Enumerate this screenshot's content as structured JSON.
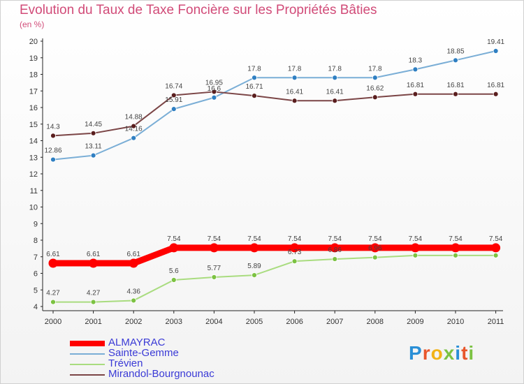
{
  "header": {
    "title": "Evolution du Taux de Taxe Foncière sur les Propriétés Bâties",
    "unit": "(en %)"
  },
  "logo": {
    "text": "Proxiti",
    "colors": [
      "#2a8fd6",
      "#e8562b",
      "#f2b317",
      "#7cc242",
      "#2a8fd6",
      "#e8562b",
      "#7cc242"
    ]
  },
  "chart_data": {
    "type": "line",
    "title": "Evolution du Taux de Taxe Foncière sur les Propriétés Bâties",
    "ylabel": "(en %)",
    "xlabel": "",
    "x": [
      "2000",
      "2001",
      "2002",
      "2003",
      "2004",
      "2005",
      "2006",
      "2007",
      "2008",
      "2009",
      "2010",
      "2011"
    ],
    "ylim": [
      4,
      20
    ],
    "yticks": [
      4,
      5,
      6,
      7,
      8,
      9,
      10,
      11,
      12,
      13,
      14,
      15,
      16,
      17,
      18,
      19,
      20
    ],
    "grid": false,
    "legend_position": "bottom-left",
    "series": [
      {
        "name": "ALMAYRAC",
        "color": "#ff0000",
        "marker_color": "#ff0000",
        "emphasis": true,
        "values": [
          6.61,
          6.61,
          6.61,
          7.54,
          7.54,
          7.54,
          7.54,
          7.54,
          7.54,
          7.54,
          7.54,
          7.54
        ],
        "labels": [
          "6.61",
          "6.61",
          "6.61",
          "7.54",
          "7.54",
          "7.54",
          "7.54",
          "7.54",
          "7.54",
          "7.54",
          "7.54",
          "7.54"
        ]
      },
      {
        "name": "Sainte-Gemme",
        "color": "#7aaed6",
        "marker_color": "#2f7fc2",
        "values": [
          12.86,
          13.11,
          14.16,
          15.91,
          16.6,
          17.8,
          17.8,
          17.8,
          17.8,
          18.3,
          18.85,
          19.41
        ],
        "labels": [
          "12.86",
          "13.11",
          "14.16",
          "15.91",
          "16.6",
          "17.8",
          "17.8",
          "17.8",
          "17.8",
          "18.3",
          "18.85",
          "19.41"
        ]
      },
      {
        "name": "Trévien",
        "color": "#a9dc7f",
        "marker_color": "#7cc242",
        "values": [
          4.27,
          4.27,
          4.36,
          5.6,
          5.77,
          5.89,
          6.73,
          6.86,
          6.96,
          7.08,
          7.08,
          7.08
        ],
        "labels": [
          "4.27",
          "4.27",
          "4.36",
          "5.6",
          "5.77",
          "5.89",
          "6.73",
          "6.86",
          "6.96",
          "",
          "",
          ""
        ]
      },
      {
        "name": "Mirandol-Bourgnounac",
        "color": "#7b4546",
        "marker_color": "#5a1e1e",
        "values": [
          14.3,
          14.45,
          14.88,
          16.74,
          16.95,
          16.71,
          16.41,
          16.41,
          16.62,
          16.81,
          16.81,
          16.81
        ],
        "labels": [
          "14.3",
          "14.45",
          "14.88",
          "16.74",
          "16.95",
          "16.71",
          "16.41",
          "16.41",
          "16.62",
          "16.81",
          "16.81",
          "16.81"
        ]
      }
    ]
  }
}
